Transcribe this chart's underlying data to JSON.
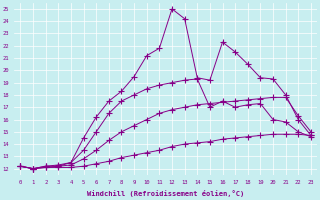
{
  "xlabel": "Windchill (Refroidissement éolien,°C)",
  "background_color": "#c8eef0",
  "line_color": "#880088",
  "xlim": [
    -0.5,
    23.5
  ],
  "ylim": [
    11.5,
    25.5
  ],
  "xticks": [
    0,
    1,
    2,
    3,
    4,
    5,
    6,
    7,
    8,
    9,
    10,
    11,
    12,
    13,
    14,
    15,
    16,
    17,
    18,
    19,
    20,
    21,
    22,
    23
  ],
  "yticks": [
    12,
    13,
    14,
    15,
    16,
    17,
    18,
    19,
    20,
    21,
    22,
    23,
    24,
    25
  ],
  "lines": [
    {
      "x": [
        0,
        1,
        2,
        3,
        4,
        5,
        6,
        7,
        8,
        9,
        10,
        11,
        12,
        13,
        14,
        15,
        16,
        17,
        18,
        19,
        20,
        21,
        22,
        23
      ],
      "y": [
        12.2,
        12.0,
        12.1,
        12.1,
        12.1,
        12.2,
        12.4,
        12.6,
        12.9,
        13.1,
        13.3,
        13.5,
        13.8,
        14.0,
        14.1,
        14.2,
        14.4,
        14.5,
        14.6,
        14.7,
        14.8,
        14.8,
        14.8,
        14.7
      ]
    },
    {
      "x": [
        0,
        1,
        2,
        3,
        4,
        5,
        6,
        7,
        8,
        9,
        10,
        11,
        12,
        13,
        14,
        15,
        16,
        17,
        18,
        19,
        20,
        21,
        22,
        23
      ],
      "y": [
        12.2,
        12.0,
        12.1,
        12.2,
        12.3,
        12.8,
        13.5,
        14.3,
        15.0,
        15.5,
        16.0,
        16.5,
        16.8,
        17.0,
        17.2,
        17.3,
        17.4,
        17.5,
        17.6,
        17.7,
        17.8,
        17.8,
        16.3,
        15.0
      ]
    },
    {
      "x": [
        0,
        1,
        2,
        3,
        4,
        5,
        6,
        7,
        8,
        9,
        10,
        11,
        12,
        13,
        14,
        15,
        16,
        17,
        18,
        19,
        20,
        21,
        22,
        23
      ],
      "y": [
        12.2,
        12.0,
        12.2,
        12.2,
        12.5,
        13.5,
        15.0,
        16.5,
        17.5,
        18.0,
        18.5,
        18.8,
        19.0,
        19.2,
        19.3,
        17.0,
        17.5,
        17.0,
        17.2,
        17.3,
        16.0,
        15.8,
        15.0,
        14.6
      ]
    },
    {
      "x": [
        0,
        1,
        2,
        3,
        4,
        5,
        6,
        7,
        8,
        9,
        10,
        11,
        12,
        13,
        14,
        15,
        16,
        17,
        18,
        19,
        20,
        21,
        22,
        23
      ],
      "y": [
        12.2,
        12.0,
        12.2,
        12.3,
        12.5,
        14.5,
        16.2,
        17.5,
        18.3,
        19.5,
        21.2,
        21.8,
        25.0,
        24.2,
        19.4,
        19.2,
        22.3,
        21.5,
        20.5,
        19.4,
        19.3,
        18.0,
        16.0,
        14.7
      ]
    }
  ]
}
